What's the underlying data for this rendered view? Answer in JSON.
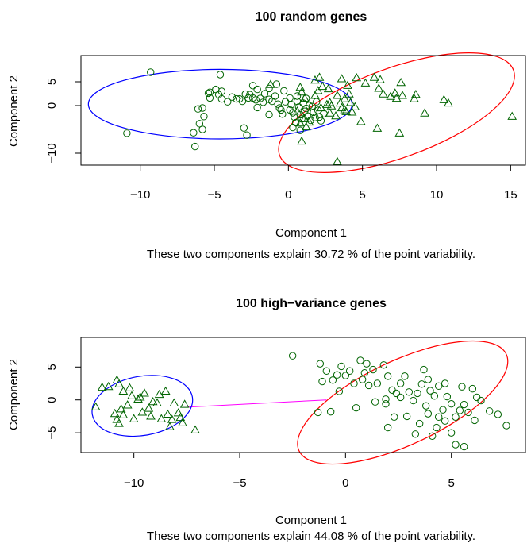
{
  "chart_data": [
    {
      "type": "scatter",
      "title": "100 random genes",
      "xlabel": "Component 1",
      "ylabel": "Component 2",
      "subtitle": "These two components explain 30.72 % of the point variability.",
      "xlim": [
        -14,
        16
      ],
      "ylim": [
        -12.5,
        10.5
      ],
      "xticks": [
        -10,
        -5,
        0,
        5,
        10,
        15
      ],
      "yticks": [
        -10,
        0,
        5
      ],
      "grid": false,
      "colors": {
        "points": "#006400",
        "cluster1": "#0000ff",
        "cluster2": "#ff0000",
        "axes": "#000000"
      },
      "clusters": [
        {
          "marker": "circle",
          "ellipse_color": "#0000ff",
          "ellipse": {
            "cx": -4.6,
            "cy": 0.3,
            "rx": 8.9,
            "ry": 7.3,
            "angle": 0
          }
        },
        {
          "marker": "triangle",
          "ellipse_color": "#ff0000",
          "ellipse": {
            "cx": 7.3,
            "cy": -1.5,
            "rx": 8.4,
            "ry": 9.4,
            "angle": -20
          }
        }
      ],
      "series": [
        {
          "marker": "circle",
          "points": [
            [
              -9.3,
              7
            ],
            [
              -10.9,
              -5.8
            ],
            [
              -6.3,
              -8.6
            ],
            [
              -4.6,
              6.5
            ],
            [
              -6.4,
              -5.7
            ],
            [
              -6,
              -3.8
            ],
            [
              -5.8,
              -5
            ],
            [
              -5.7,
              -2.3
            ],
            [
              -6.1,
              -0.7
            ],
            [
              -5.8,
              -0.5
            ],
            [
              -5.3,
              1.6
            ],
            [
              -5.4,
              2.6
            ],
            [
              -5.3,
              2.8
            ],
            [
              -4.9,
              3.4
            ],
            [
              -4.7,
              2.3
            ],
            [
              -4.5,
              3
            ],
            [
              -4.5,
              1.4
            ],
            [
              -4.1,
              0.8
            ],
            [
              -3.8,
              1.8
            ],
            [
              -3.5,
              1.4
            ],
            [
              -3.3,
              1.4
            ],
            [
              -3.1,
              0.9
            ],
            [
              -2.9,
              2.4
            ],
            [
              -2.7,
              1.6
            ],
            [
              -2.6,
              2.3
            ],
            [
              -2.4,
              1.6
            ],
            [
              -2.2,
              1.2
            ],
            [
              -2.1,
              -0.4
            ],
            [
              -1.9,
              1.5
            ],
            [
              -1.7,
              0.7
            ],
            [
              -1.6,
              2.5
            ],
            [
              -1.3,
              1.3
            ],
            [
              -1.1,
              0.9
            ],
            [
              -0.9,
              2
            ],
            [
              -0.7,
              0.3
            ],
            [
              -0.5,
              -0.9
            ],
            [
              -0.3,
              3.1
            ],
            [
              -0.2,
              0.8
            ],
            [
              -0.8,
              4.5
            ],
            [
              -1.3,
              3.6
            ],
            [
              -2.1,
              3.4
            ],
            [
              -2.4,
              4.2
            ],
            [
              -3,
              -4.7
            ],
            [
              -2.8,
              -6.2
            ],
            [
              -1.3,
              -1.9
            ],
            [
              0.1,
              -0.9
            ],
            [
              0.2,
              0.2
            ],
            [
              0.3,
              -1.5
            ],
            [
              0.4,
              -2.4
            ],
            [
              0.5,
              -3.6
            ],
            [
              0.6,
              0.9
            ],
            [
              0.7,
              -0.3
            ],
            [
              0.8,
              -1.9
            ],
            [
              0.9,
              -2.8
            ],
            [
              1,
              0.5
            ],
            [
              1.1,
              -1.2
            ],
            [
              1.2,
              -0.6
            ],
            [
              1.3,
              -2.2
            ],
            [
              1.4,
              0
            ],
            [
              1.5,
              -3.1
            ],
            [
              1.6,
              -0.2
            ],
            [
              1.7,
              -1.4
            ],
            [
              1.8,
              -2.5
            ],
            [
              1.9,
              0.8
            ],
            [
              2,
              -1
            ],
            [
              2.1,
              -2.4
            ],
            [
              2.2,
              -3.2
            ],
            [
              2.4,
              -1.7
            ],
            [
              0.6,
              2
            ],
            [
              1.2,
              1.5
            ],
            [
              0.3,
              -4.6
            ],
            [
              0.8,
              -5.2
            ],
            [
              -0.4,
              -1.8
            ],
            [
              0.1,
              1.6
            ],
            [
              -0.6,
              -0.5
            ]
          ]
        },
        {
          "marker": "triangle",
          "points": [
            [
              3.3,
              -11.8
            ],
            [
              2.3,
              4
            ],
            [
              2,
              3.1
            ],
            [
              1.8,
              5.3
            ],
            [
              2.1,
              5.9
            ],
            [
              4.6,
              5.8
            ],
            [
              3.6,
              5.6
            ],
            [
              4,
              4.2
            ],
            [
              5.2,
              4.7
            ],
            [
              5.8,
              5.9
            ],
            [
              6.2,
              5.4
            ],
            [
              6.1,
              3.6
            ],
            [
              6.4,
              2.4
            ],
            [
              6.9,
              1.9
            ],
            [
              7.2,
              2.6
            ],
            [
              7.3,
              1.5
            ],
            [
              7.7,
              2.1
            ],
            [
              8.5,
              1.4
            ],
            [
              7.6,
              4.8
            ],
            [
              8.6,
              2.3
            ],
            [
              9.2,
              -1.6
            ],
            [
              10.5,
              1.2
            ],
            [
              10.8,
              0.5
            ],
            [
              15.1,
              -2.3
            ],
            [
              7.5,
              -5.8
            ],
            [
              6,
              -4.8
            ],
            [
              4.9,
              -3.4
            ],
            [
              4.3,
              -1.4
            ],
            [
              3.8,
              -0.9
            ],
            [
              3.2,
              -2.2
            ],
            [
              2.8,
              -1.6
            ],
            [
              2.6,
              0.2
            ],
            [
              2.2,
              -0.5
            ],
            [
              1.1,
              1.5
            ],
            [
              0.6,
              -1.2
            ],
            [
              0.8,
              -3.7
            ],
            [
              1.1,
              -2.8
            ],
            [
              1.2,
              -4.5
            ],
            [
              0.8,
              3.8
            ],
            [
              0.9,
              2.8
            ],
            [
              1.8,
              2.1
            ],
            [
              2.7,
              3.5
            ],
            [
              3.3,
              2.1
            ],
            [
              3.5,
              0.5
            ],
            [
              4.1,
              2.4
            ],
            [
              4.2,
              0.6
            ],
            [
              4.5,
              -0.3
            ],
            [
              3.8,
              1.4
            ],
            [
              2.9,
              -0.1
            ],
            [
              1.4,
              -3.5
            ],
            [
              0.9,
              -7.5
            ],
            [
              -1.2,
              4.4
            ],
            [
              3.9,
              -1.3
            ],
            [
              3.6,
              -0.5
            ],
            [
              2.8,
              0.6
            ]
          ]
        }
      ]
    },
    {
      "type": "scatter",
      "title": "100 high−variance genes",
      "xlabel": "Component 1",
      "ylabel": "Component 2",
      "subtitle": "These two components explain 44.08 % of the point variability.",
      "xlim": [
        -12.5,
        8.5
      ],
      "ylim": [
        -8,
        9.5
      ],
      "xticks": [
        -10,
        -5,
        0,
        5
      ],
      "yticks": [
        -5,
        0,
        5
      ],
      "grid": false,
      "colors": {
        "points": "#006400",
        "cluster1": "#0000ff",
        "cluster2": "#ff0000",
        "connector": "#ff00ff",
        "axes": "#000000"
      },
      "connector": [
        [
          -7.5,
          -1.1
        ],
        [
          -0.9,
          0
        ]
      ],
      "clusters": [
        {
          "marker": "triangle",
          "ellipse_color": "#0000ff",
          "ellipse": {
            "cx": -9.6,
            "cy": -0.9,
            "rx": 2.4,
            "ry": 4.5,
            "angle": -10
          }
        },
        {
          "marker": "circle",
          "ellipse_color": "#ff0000",
          "ellipse": {
            "cx": 2.7,
            "cy": -0.4,
            "rx": 5.4,
            "ry": 6.4,
            "angle": -25
          }
        }
      ],
      "series": [
        {
          "marker": "triangle",
          "points": [
            [
              -11.8,
              -1.1
            ],
            [
              -11.2,
              2
            ],
            [
              -10.8,
              3
            ],
            [
              -10.7,
              2.4
            ],
            [
              -10.5,
              1.3
            ],
            [
              -10.6,
              -1.4
            ],
            [
              -10.8,
              -3
            ],
            [
              -10.5,
              -2.3
            ],
            [
              -10.3,
              -0.8
            ],
            [
              -10.1,
              0.6
            ],
            [
              -9.8,
              0.1
            ],
            [
              -9.5,
              1
            ],
            [
              -9.1,
              -0.3
            ],
            [
              -8.8,
              0.8
            ],
            [
              -8.5,
              1.3
            ],
            [
              -8.1,
              -0.5
            ],
            [
              -7.6,
              -0.7
            ],
            [
              -7.9,
              -2
            ],
            [
              -8.2,
              -3
            ],
            [
              -8.7,
              -2.9
            ],
            [
              -9.2,
              -2.5
            ],
            [
              -9.6,
              -1.9
            ],
            [
              -10,
              -2.9
            ],
            [
              -10.7,
              -3.6
            ],
            [
              -10.9,
              -2.1
            ],
            [
              -7.1,
              -4.6
            ],
            [
              -7.7,
              -3.5
            ],
            [
              -8.3,
              -4.1
            ],
            [
              -9.3,
              -1.3
            ],
            [
              -8.9,
              -0.5
            ],
            [
              -9.7,
              0.4
            ],
            [
              -10.2,
              1.8
            ],
            [
              -11.5,
              1.9
            ],
            [
              -8.4,
              -2.2
            ],
            [
              -7.8,
              -2.7
            ]
          ]
        },
        {
          "marker": "circle",
          "points": [
            [
              -2.5,
              6.7
            ],
            [
              -1.2,
              5.5
            ],
            [
              -1.1,
              2.8
            ],
            [
              -0.9,
              4.4
            ],
            [
              -0.6,
              3
            ],
            [
              -0.4,
              3.8
            ],
            [
              -0.2,
              5.1
            ],
            [
              0,
              3.7
            ],
            [
              0.2,
              4.4
            ],
            [
              0.4,
              2.5
            ],
            [
              0.7,
              6
            ],
            [
              0.8,
              3.1
            ],
            [
              1,
              5.5
            ],
            [
              1.1,
              2.2
            ],
            [
              1.3,
              4.6
            ],
            [
              1.5,
              2.5
            ],
            [
              1.8,
              5.3
            ],
            [
              2,
              3.6
            ],
            [
              2.2,
              1.5
            ],
            [
              2.4,
              1
            ],
            [
              2.6,
              2.5
            ],
            [
              2.8,
              3.6
            ],
            [
              3,
              1.2
            ],
            [
              3.2,
              -0.1
            ],
            [
              3.4,
              1
            ],
            [
              3.6,
              2.4
            ],
            [
              3.8,
              -0.9
            ],
            [
              4,
              1.4
            ],
            [
              4.2,
              0.6
            ],
            [
              4.4,
              2.1
            ],
            [
              4.6,
              -1.5
            ],
            [
              4.8,
              0.5
            ],
            [
              5,
              -0.6
            ],
            [
              5.2,
              -2.6
            ],
            [
              5.4,
              -1.6
            ],
            [
              5.6,
              -0.7
            ],
            [
              5.8,
              -1.9
            ],
            [
              6,
              1.7
            ],
            [
              6.2,
              0.4
            ],
            [
              6.4,
              -0.1
            ],
            [
              6.8,
              -1.7
            ],
            [
              7.2,
              -2.2
            ],
            [
              7.6,
              -3.9
            ],
            [
              -1.3,
              -1.9
            ],
            [
              -0.7,
              -1.8
            ],
            [
              0.5,
              -1.2
            ],
            [
              1.4,
              -0.3
            ],
            [
              1.9,
              -0.6
            ],
            [
              2.3,
              -2.6
            ],
            [
              2.9,
              -2.5
            ],
            [
              3.5,
              -3.6
            ],
            [
              3.9,
              -2.1
            ],
            [
              4.3,
              -4.2
            ],
            [
              4.7,
              -3.2
            ],
            [
              5,
              -5
            ],
            [
              5.2,
              -6.8
            ],
            [
              5.6,
              -7.1
            ],
            [
              4.1,
              -5.5
            ],
            [
              3.3,
              -5.2
            ],
            [
              2,
              -4.2
            ],
            [
              1.9,
              0.1
            ],
            [
              3.7,
              4.6
            ],
            [
              4.7,
              2.5
            ],
            [
              0.9,
              4.1
            ],
            [
              -0.3,
              1.3
            ],
            [
              5.5,
              2
            ],
            [
              4.4,
              -2.6
            ],
            [
              6.1,
              -3.1
            ],
            [
              2.6,
              0.4
            ],
            [
              3.9,
              3.1
            ]
          ]
        }
      ]
    }
  ]
}
